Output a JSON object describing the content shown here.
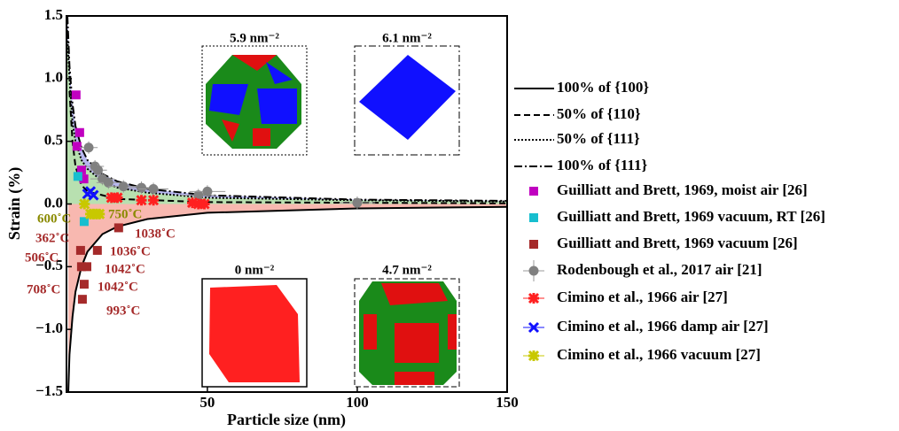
{
  "chart_data": {
    "type": "scatter",
    "xlabel": "Particle size (nm)",
    "ylabel": "Strain (%)",
    "xlim": [
      3,
      150
    ],
    "ylim": [
      -1.5,
      1.5
    ],
    "xticks": [
      50,
      100,
      150
    ],
    "yticks": [
      {
        "value": -1.5,
        "label": "−1.5"
      },
      {
        "value": -1.0,
        "label": "−1.0"
      },
      {
        "value": -0.5,
        "label": "−0.5"
      },
      {
        "value": 0.0,
        "label": "0.0"
      },
      {
        "value": 0.5,
        "label": "0.5"
      },
      {
        "value": 1.0,
        "label": "1.0"
      },
      {
        "value": 1.5,
        "label": "1.5"
      }
    ],
    "curves": [
      {
        "name": "100% of {100}",
        "linestyle": "solid",
        "x": [
          3.6,
          4,
          5,
          6,
          8,
          10,
          15,
          20,
          30,
          50,
          100,
          150
        ],
        "values": [
          -1.5,
          -1.2,
          -0.9,
          -0.7,
          -0.5,
          -0.38,
          -0.24,
          -0.18,
          -0.12,
          -0.07,
          -0.035,
          -0.023
        ]
      },
      {
        "name": "50% of {110}",
        "linestyle": "dashed",
        "x": [
          4,
          5,
          6,
          8,
          10,
          20,
          50,
          150
        ],
        "values": [
          0.9,
          0.5,
          0.3,
          0.15,
          0.1,
          0.04,
          0.015,
          0.005
        ]
      },
      {
        "name": "50% of {111}",
        "linestyle": "dotted",
        "x": [
          3,
          4,
          5,
          6,
          8,
          10,
          15,
          20,
          30,
          50,
          100,
          150
        ],
        "values": [
          1.5,
          1.0,
          0.65,
          0.5,
          0.35,
          0.28,
          0.18,
          0.13,
          0.09,
          0.05,
          0.03,
          0.02
        ]
      },
      {
        "name": "100% of {111}",
        "linestyle": "dashdot",
        "x": [
          3.3,
          4,
          5,
          6,
          8,
          10,
          15,
          20,
          30,
          50,
          100,
          150
        ],
        "values": [
          1.5,
          1.1,
          0.8,
          0.62,
          0.45,
          0.35,
          0.24,
          0.18,
          0.12,
          0.07,
          0.035,
          0.025
        ]
      }
    ],
    "series": [
      {
        "name": "Guilliatt and Brett, 1969, moist air [26]",
        "color": "#c000c0",
        "marker": "square",
        "x": [
          6.2,
          7.4,
          6.5,
          8,
          8.8
        ],
        "values": [
          0.87,
          0.57,
          0.46,
          0.27,
          0.2
        ]
      },
      {
        "name": "Guilliatt and Brett, 1969 vacuum, RT [26]",
        "color": "#17becf",
        "marker": "square",
        "x": [
          6.8,
          8.9
        ],
        "values": [
          0.22,
          -0.14
        ]
      },
      {
        "name": "Guilliatt and Brett, 1969 vacuum [26]",
        "color": "#a52a2a",
        "marker": "square",
        "x": [
          7.7,
          8,
          9.8,
          8.9,
          8.3,
          13.3,
          20.4
        ],
        "values": [
          -0.37,
          -0.5,
          -0.5,
          -0.64,
          -0.76,
          -0.37,
          -0.19
        ]
      },
      {
        "name": "Rodenbough et al., 2017 air [21]",
        "color": "#808080",
        "marker": "circle",
        "x": [
          10.4,
          12.5,
          13.5,
          15,
          17,
          22,
          28,
          32,
          47,
          50,
          100
        ],
        "values": [
          0.45,
          0.3,
          0.27,
          0.2,
          0.17,
          0.14,
          0.13,
          0.12,
          0.07,
          0.1,
          0.01
        ],
        "xerr": [
          3,
          3,
          3,
          4,
          4,
          5,
          5,
          5,
          6,
          6,
          6
        ],
        "yerr": [
          0.05,
          0.05,
          0.05,
          0.05,
          0.05,
          0.05,
          0.05,
          0.05,
          0.05,
          0.05,
          0.05
        ]
      },
      {
        "name": "Cimino et al., 1966 air [27]",
        "color": "#ff2020",
        "marker": "plusx",
        "x": [
          18,
          20,
          28,
          32,
          45,
          47,
          49
        ],
        "values": [
          0.05,
          0.05,
          0.03,
          0.03,
          0.01,
          0.0,
          0.0
        ]
      },
      {
        "name": "Cimino et al., 1966 damp air [27]",
        "color": "#1010ff",
        "marker": "x",
        "x": [
          10,
          11,
          12
        ],
        "values": [
          0.08,
          0.1,
          0.07
        ]
      },
      {
        "name": "Cimino et al., 1966 vacuum [27]",
        "color": "#c8c800",
        "marker": "plusx",
        "x": [
          9,
          11,
          12,
          13,
          14
        ],
        "values": [
          0.0,
          -0.08,
          -0.08,
          -0.08,
          -0.08
        ]
      }
    ],
    "annotations": [
      "600˚C",
      "750˚C",
      "362˚C",
      "1038˚C",
      "506˚C",
      "1036˚C",
      "1042˚C",
      "708˚C",
      "1042˚C",
      "993˚C"
    ],
    "insets": [
      "5.9 nm⁻²",
      "6.1 nm⁻²",
      "0 nm⁻²",
      "4.7 nm⁻²"
    ]
  }
}
